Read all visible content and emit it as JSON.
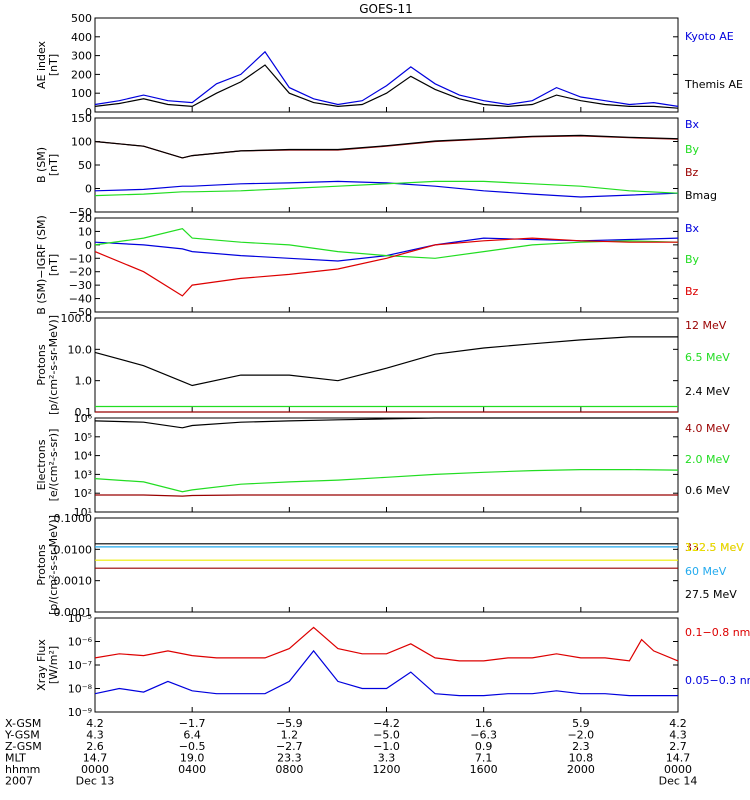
{
  "title": "GOES-11",
  "colors": {
    "black": "#000000",
    "blue": "#0000dd",
    "green": "#22dd22",
    "red": "#dd0000",
    "darkred": "#990000",
    "yellow": "#eeee00",
    "cyan": "#22aaee"
  },
  "chart_data": [
    {
      "type": "line",
      "id": "ae",
      "ylabel": [
        "AE index",
        "[nT]"
      ],
      "ylim": [
        0,
        500
      ],
      "log": false,
      "yticks": [
        0,
        100,
        200,
        300,
        400,
        500
      ],
      "ytick_labels": [
        "0",
        "100",
        "200",
        "300",
        "400",
        "500"
      ],
      "x": [
        0,
        1,
        2,
        3,
        4,
        5,
        6,
        7,
        8,
        9,
        10,
        11,
        12,
        13,
        14,
        15,
        16,
        17,
        18,
        19,
        20,
        21,
        22,
        23,
        24
      ],
      "series": [
        {
          "name": "Kyoto AE",
          "color": "blue",
          "values": [
            40,
            60,
            90,
            60,
            50,
            150,
            200,
            320,
            130,
            70,
            40,
            60,
            140,
            240,
            150,
            90,
            60,
            40,
            60,
            130,
            80,
            60,
            40,
            50,
            30
          ]
        },
        {
          "name": "Themis AE",
          "color": "black",
          "values": [
            30,
            45,
            70,
            40,
            30,
            100,
            160,
            250,
            100,
            50,
            30,
            40,
            100,
            190,
            120,
            70,
            40,
            30,
            40,
            90,
            60,
            40,
            30,
            30,
            20
          ]
        }
      ]
    },
    {
      "type": "line",
      "id": "bsm",
      "ylabel": [
        "B (SM)",
        "[nT]"
      ],
      "ylim": [
        -50,
        150
      ],
      "log": false,
      "yticks": [
        -50,
        0,
        50,
        100,
        150
      ],
      "ytick_labels": [
        "−50",
        "0",
        "50",
        "100",
        "150"
      ],
      "x": [
        0,
        2,
        3.6,
        4,
        6,
        8,
        10,
        12,
        14,
        16,
        18,
        20,
        22,
        24
      ],
      "series": [
        {
          "name": "Bx",
          "color": "blue",
          "values": [
            -5,
            -2,
            5,
            5,
            10,
            12,
            15,
            12,
            5,
            -5,
            -12,
            -18,
            -14,
            -10
          ]
        },
        {
          "name": "By",
          "color": "green",
          "values": [
            -15,
            -12,
            -7,
            -7,
            -5,
            0,
            5,
            10,
            15,
            15,
            10,
            5,
            -5,
            -10
          ]
        },
        {
          "name": "Bz",
          "color": "darkred",
          "values": [
            100,
            90,
            65,
            70,
            80,
            82,
            82,
            90,
            100,
            105,
            110,
            112,
            108,
            105
          ]
        },
        {
          "name": "Bmag",
          "color": "black",
          "values": [
            100,
            90,
            65,
            70,
            80,
            83,
            83,
            91,
            101,
            106,
            111,
            113,
            109,
            106
          ]
        }
      ]
    },
    {
      "type": "line",
      "id": "bdiff",
      "ylabel": [
        "B (SM)−IGRF (SM)",
        "[nT]"
      ],
      "ylim": [
        -50,
        20
      ],
      "log": false,
      "yticks": [
        -50,
        -40,
        -30,
        -20,
        -10,
        0,
        10,
        20
      ],
      "ytick_labels": [
        "−50",
        "−40",
        "−30",
        "−20",
        "−10",
        "0",
        "10",
        "20"
      ],
      "x": [
        0,
        2,
        3.6,
        4,
        6,
        8,
        10,
        12,
        14,
        16,
        18,
        20,
        22,
        24
      ],
      "series": [
        {
          "name": "Bx",
          "color": "blue",
          "values": [
            2,
            0,
            -3,
            -5,
            -8,
            -10,
            -12,
            -8,
            0,
            5,
            4,
            3,
            4,
            5
          ]
        },
        {
          "name": "By",
          "color": "green",
          "values": [
            0,
            5,
            12,
            5,
            2,
            0,
            -5,
            -8,
            -10,
            -5,
            0,
            2,
            3,
            2
          ]
        },
        {
          "name": "Bz",
          "color": "red",
          "values": [
            -5,
            -20,
            -38,
            -30,
            -25,
            -22,
            -18,
            -10,
            0,
            3,
            5,
            3,
            2,
            2
          ]
        }
      ]
    },
    {
      "type": "line",
      "id": "protons1",
      "ylabel": [
        "Protons",
        "[p/(cm²-s-sr-MeV)]"
      ],
      "ylim": [
        0.1,
        100
      ],
      "log": true,
      "yticks": [
        0.1,
        1,
        10,
        100
      ],
      "ytick_labels": [
        "0.1",
        "1.0",
        "10.0",
        "100.0"
      ],
      "x": [
        0,
        2,
        4,
        6,
        8,
        10,
        12,
        14,
        16,
        18,
        20,
        22,
        24
      ],
      "series": [
        {
          "name": "12 MeV",
          "color": "darkred",
          "values": [
            0.1,
            0.1,
            0.1,
            0.1,
            0.1,
            0.1,
            0.1,
            0.1,
            0.1,
            0.1,
            0.1,
            0.1,
            0.1
          ]
        },
        {
          "name": "6.5 MeV",
          "color": "green",
          "values": [
            0.15,
            0.15,
            0.15,
            0.15,
            0.15,
            0.15,
            0.15,
            0.15,
            0.15,
            0.15,
            0.15,
            0.15,
            0.15
          ]
        },
        {
          "name": "2.4 MeV",
          "color": "black",
          "values": [
            8,
            3,
            0.7,
            1.5,
            1.5,
            1,
            2.5,
            7,
            11,
            15,
            20,
            25,
            25
          ]
        }
      ]
    },
    {
      "type": "line",
      "id": "electrons",
      "ylabel": [
        "Electrons",
        "[e/(cm²-s-sr)]"
      ],
      "ylim": [
        10,
        1000000
      ],
      "log": true,
      "yticks": [
        10,
        100,
        1000,
        10000,
        100000,
        1000000
      ],
      "ytick_labels": [
        "10¹",
        "10²",
        "10³",
        "10⁴",
        "10⁵",
        "10⁶"
      ],
      "x": [
        0,
        2,
        3.6,
        4,
        6,
        8,
        10,
        12,
        14,
        16,
        18,
        20,
        22,
        24
      ],
      "series": [
        {
          "name": "4.0 MeV",
          "color": "darkred",
          "values": [
            80,
            80,
            70,
            75,
            80,
            80,
            80,
            80,
            80,
            80,
            80,
            80,
            80,
            80
          ]
        },
        {
          "name": "2.0 MeV",
          "color": "green",
          "values": [
            600,
            400,
            120,
            150,
            300,
            400,
            500,
            700,
            1000,
            1300,
            1600,
            1800,
            1800,
            1700
          ]
        },
        {
          "name": "0.6 MeV",
          "color": "black",
          "values": [
            700000,
            600000,
            300000,
            400000,
            600000,
            700000,
            800000,
            900000,
            1000000,
            1000000,
            1000000,
            1000000,
            1000000,
            1000000
          ]
        }
      ]
    },
    {
      "type": "line",
      "id": "protons2",
      "ylabel": [
        "Protons",
        "[p/(cm²-s-sr-MeV)]"
      ],
      "ylim": [
        0.0001,
        0.1
      ],
      "log": true,
      "yticks": [
        0.0001,
        0.001,
        0.01,
        0.1
      ],
      "ytick_labels": [
        "0.0001",
        "0.0010",
        "0.0100",
        "0.1000"
      ],
      "x": [
        0,
        4,
        8,
        12,
        16,
        20,
        24
      ],
      "series": [
        {
          "name": "332.5 MeV",
          "color": "darkred",
          "values": [
            0.0025,
            0.0025,
            0.0025,
            0.0025,
            0.0025,
            0.0025,
            0.0025
          ]
        },
        {
          "name": "122.5 MeV",
          "color": "yellow",
          "values": [
            0.0045,
            0.0045,
            0.0045,
            0.0045,
            0.0045,
            0.0045,
            0.0045
          ]
        },
        {
          "name": "60 MeV",
          "color": "cyan",
          "values": [
            0.012,
            0.012,
            0.012,
            0.012,
            0.012,
            0.012,
            0.012
          ]
        },
        {
          "name": "27.5 MeV",
          "color": "black",
          "values": [
            0.015,
            0.015,
            0.015,
            0.015,
            0.015,
            0.015,
            0.015
          ]
        }
      ]
    },
    {
      "type": "line",
      "id": "xray",
      "ylabel": [
        "Xray Flux",
        "[W/m²]"
      ],
      "ylim": [
        1e-09,
        1e-05
      ],
      "log": true,
      "yticks": [
        1e-09,
        1e-08,
        1e-07,
        1e-06,
        1e-05
      ],
      "ytick_labels": [
        "10⁻⁹",
        "10⁻⁸",
        "10⁻⁷",
        "10⁻⁶",
        "10⁻⁵"
      ],
      "x": [
        0,
        1,
        2,
        3,
        4,
        5,
        6,
        7,
        8,
        9,
        10,
        11,
        12,
        13,
        14,
        15,
        16,
        17,
        18,
        19,
        20,
        21,
        22,
        22.5,
        23,
        24
      ],
      "series": [
        {
          "name": "0.1−0.8 nm",
          "color": "red",
          "values": [
            2e-07,
            3e-07,
            2.5e-07,
            4e-07,
            2.5e-07,
            2e-07,
            2e-07,
            2e-07,
            5e-07,
            4e-06,
            5e-07,
            3e-07,
            3e-07,
            8e-07,
            2e-07,
            1.5e-07,
            1.5e-07,
            2e-07,
            2e-07,
            3e-07,
            2e-07,
            2e-07,
            1.5e-07,
            1.2e-06,
            4e-07,
            1.5e-07
          ]
        },
        {
          "name": "0.05−0.3 nm",
          "color": "blue",
          "values": [
            6e-09,
            1e-08,
            7e-09,
            2e-08,
            8e-09,
            6e-09,
            6e-09,
            6e-09,
            2e-08,
            4e-07,
            2e-08,
            1e-08,
            1e-08,
            5e-08,
            6e-09,
            5e-09,
            5e-09,
            6e-09,
            6e-09,
            8e-09,
            6e-09,
            6e-09,
            5e-09,
            5e-09,
            5e-09,
            5e-09
          ]
        }
      ]
    }
  ],
  "xaxis": {
    "tick_hours": [
      0,
      4,
      8,
      12,
      16,
      20,
      24
    ],
    "rows": [
      {
        "label": "X-GSM",
        "values": [
          "4.2",
          "−1.7",
          "−5.9",
          "−4.2",
          "1.6",
          "5.9",
          "4.2"
        ]
      },
      {
        "label": "Y-GSM",
        "values": [
          "4.3",
          "6.4",
          "1.2",
          "−5.0",
          "−6.3",
          "−2.0",
          "4.3"
        ]
      },
      {
        "label": "Z-GSM",
        "values": [
          "2.6",
          "−0.5",
          "−2.7",
          "−1.0",
          "0.9",
          "2.3",
          "2.7"
        ]
      },
      {
        "label": "MLT",
        "values": [
          "14.7",
          "19.0",
          "23.3",
          "3.3",
          "7.1",
          "10.8",
          "14.7"
        ]
      },
      {
        "label": "hhmm",
        "values": [
          "0000",
          "0400",
          "0800",
          "1200",
          "1600",
          "2000",
          "0000"
        ]
      },
      {
        "label": "2007",
        "values": [
          "Dec 13",
          "",
          "",
          "",
          "",
          "",
          "Dec 14"
        ]
      }
    ]
  }
}
